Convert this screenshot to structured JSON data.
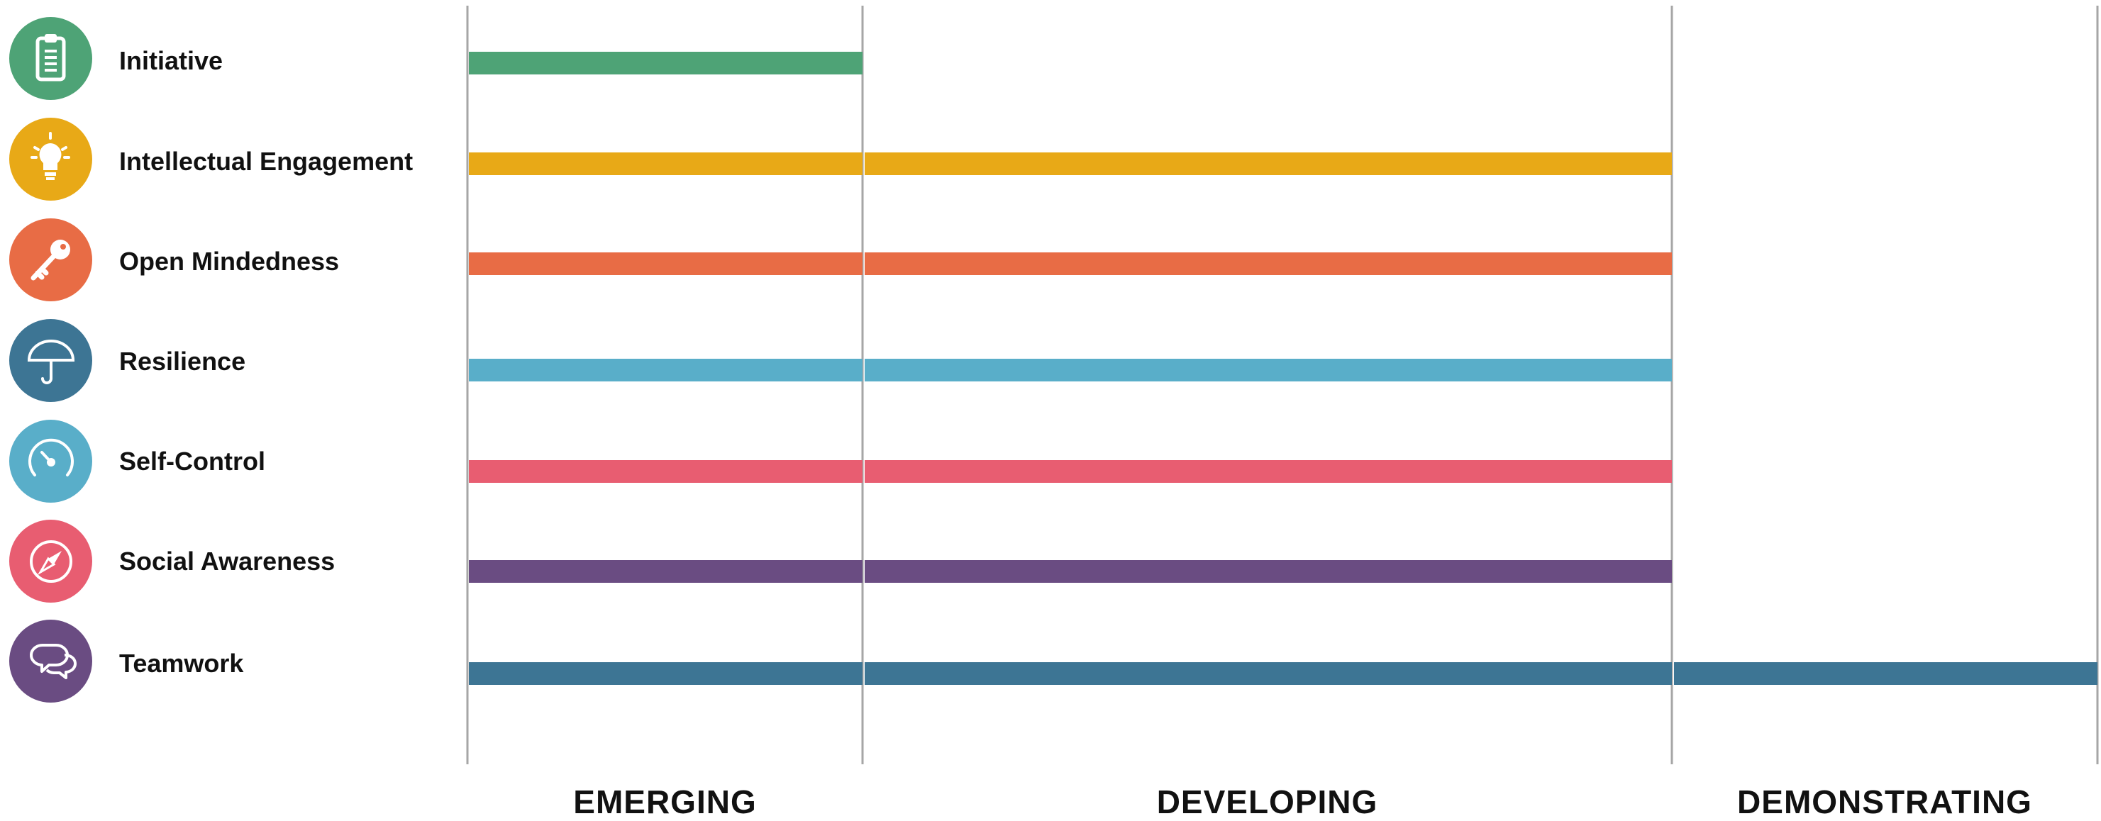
{
  "chart_data": {
    "type": "bar",
    "orientation": "horizontal",
    "levels": [
      "EMERGING",
      "DEVELOPING",
      "DEMONSTRATING"
    ],
    "categories": [
      {
        "name": "Initiative",
        "level": 1,
        "color": "#4ea376",
        "icon": "clipboard-icon"
      },
      {
        "name": "Intellectual Engagement",
        "level": 2,
        "color": "#e8a917",
        "icon": "lightbulb-icon"
      },
      {
        "name": "Open Mindedness",
        "level": 2,
        "color": "#e86c45",
        "icon": "key-icon"
      },
      {
        "name": "Resilience",
        "level": 2,
        "color": "#59aec9",
        "icon": "umbrella-icon"
      },
      {
        "name": "Self-Control",
        "level": 2,
        "color": "#e85d71",
        "icon": "speedometer-icon"
      },
      {
        "name": "Social Awareness",
        "level": 2,
        "color": "#6a4c82",
        "icon": "compass-icon"
      },
      {
        "name": "Teamwork",
        "level": 3,
        "color": "#3d7594",
        "icon": "chat-bubbles-icon"
      }
    ],
    "icon_colors": [
      "#4ea376",
      "#e8a917",
      "#e86c45",
      "#3d7594",
      "#59aec9",
      "#e85d71",
      "#6a4c82"
    ],
    "xlim": [
      0,
      3
    ],
    "grid": true
  }
}
